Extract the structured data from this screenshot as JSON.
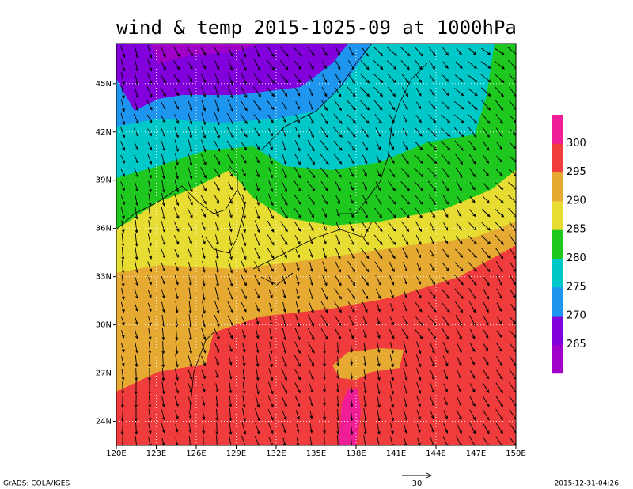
{
  "chart_data": {
    "type": "map",
    "title": "wind & temp 2015-1025-09 at 1000hPa",
    "xlim": [
      120,
      150
    ],
    "ylim": [
      22.5,
      47.5
    ],
    "xticks": [
      {
        "value": 120,
        "label": "120E"
      },
      {
        "value": 123,
        "label": "123E"
      },
      {
        "value": 126,
        "label": "126E"
      },
      {
        "value": 129,
        "label": "129E"
      },
      {
        "value": 132,
        "label": "132E"
      },
      {
        "value": 135,
        "label": "135E"
      },
      {
        "value": 138,
        "label": "138E"
      },
      {
        "value": 141,
        "label": "141E"
      },
      {
        "value": 144,
        "label": "144E"
      },
      {
        "value": 147,
        "label": "147E"
      },
      {
        "value": 150,
        "label": "150E"
      }
    ],
    "yticks": [
      {
        "value": 24,
        "label": "24N"
      },
      {
        "value": 27,
        "label": "27N"
      },
      {
        "value": 30,
        "label": "30N"
      },
      {
        "value": 33,
        "label": "33N"
      },
      {
        "value": 36,
        "label": "36N"
      },
      {
        "value": 39,
        "label": "39N"
      },
      {
        "value": 42,
        "label": "42N"
      },
      {
        "value": 45,
        "label": "45N"
      }
    ],
    "grid": true,
    "colorbar": {
      "levels": [
        265,
        270,
        275,
        280,
        285,
        290,
        295,
        300
      ],
      "colors": [
        "#a000c8",
        "#8200dc",
        "#1e96f0",
        "#00c8c8",
        "#1ec81e",
        "#e6dc32",
        "#e6aa32",
        "#f03c3c",
        "#f01e96"
      ]
    },
    "vector_reference": 30,
    "footer_left": "GrADS: COLA/IGES",
    "footer_right": "2015-12-31-04:26"
  }
}
